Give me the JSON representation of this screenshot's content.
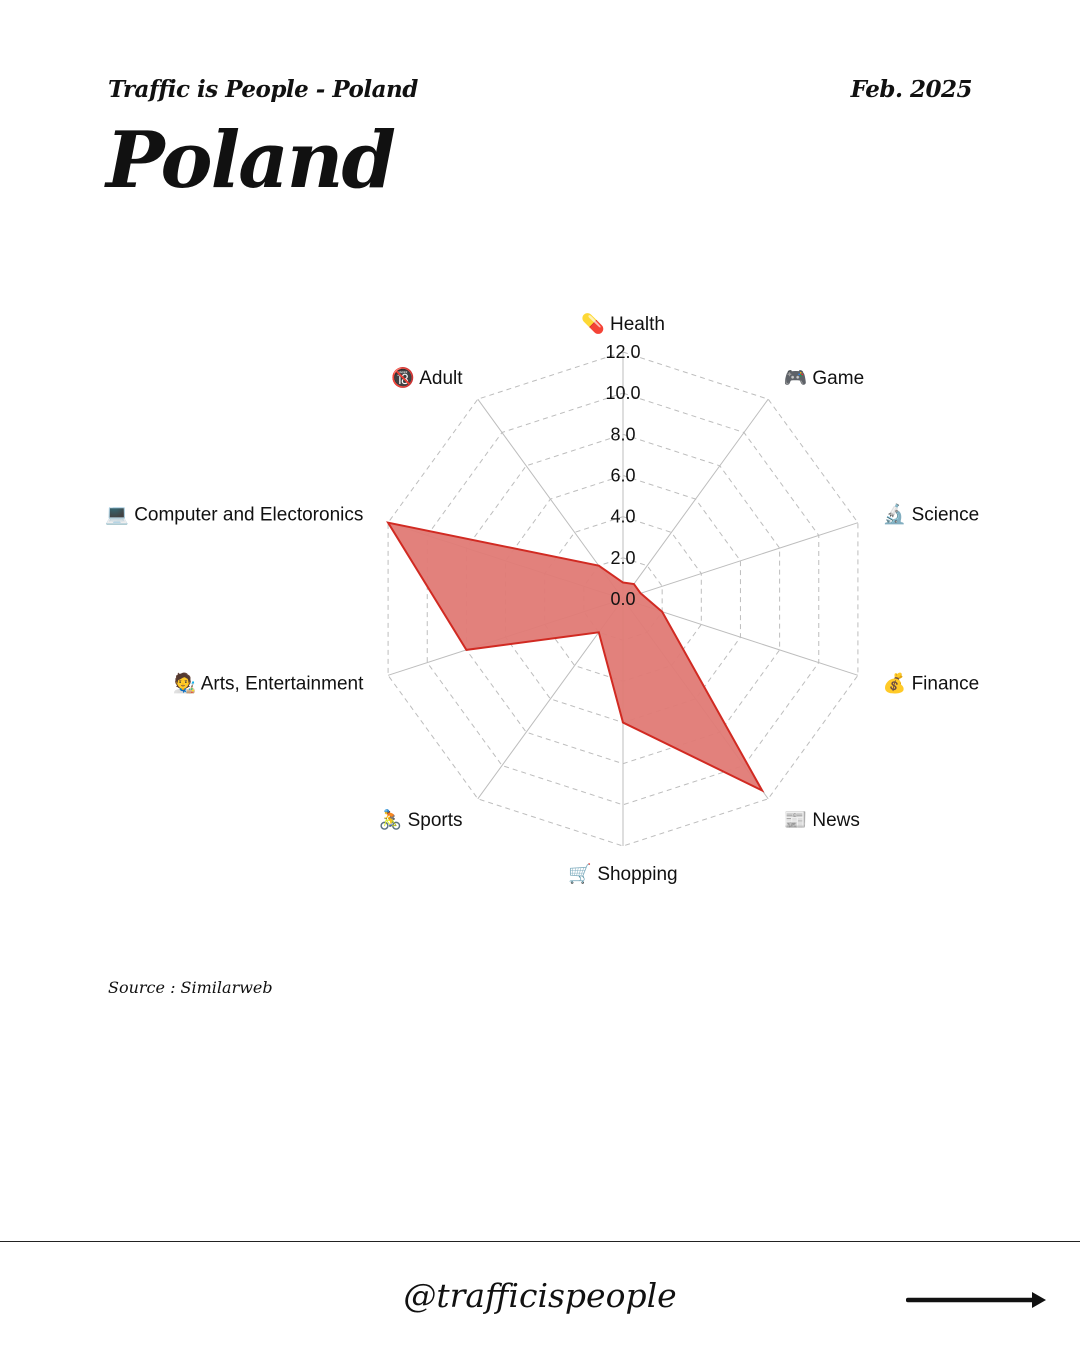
{
  "header": {
    "series_title": "Traffic is People - Poland",
    "date": "Feb. 2025",
    "title": "Poland"
  },
  "source": "Source : Similarweb",
  "footer": {
    "handle": "@trafficispeople",
    "next_icon": "right-arrow-icon"
  },
  "colors": {
    "fill": "#e07a75",
    "stroke": "#d12a22",
    "grid": "#bdbdbd"
  },
  "chart_data": {
    "type": "radar",
    "title": "",
    "rlim": [
      0,
      12
    ],
    "ticks": [
      "0.0",
      "2.0",
      "4.0",
      "6.0",
      "8.0",
      "10.0",
      "12.0"
    ],
    "grid": true,
    "categories": [
      {
        "label": "Health",
        "icon": "pill-icon",
        "glyph": "💊"
      },
      {
        "label": "Game",
        "icon": "gamepad-icon",
        "glyph": "🎮"
      },
      {
        "label": "Science",
        "icon": "microscope-icon",
        "glyph": "🔬"
      },
      {
        "label": "Finance",
        "icon": "money-bag-icon",
        "glyph": "💰"
      },
      {
        "label": "News",
        "icon": "newspaper-icon",
        "glyph": "📰"
      },
      {
        "label": "Shopping",
        "icon": "cart-icon",
        "glyph": "🛒"
      },
      {
        "label": "Sports",
        "icon": "cyclist-icon",
        "glyph": "🚴"
      },
      {
        "label": "Arts, Entertainment",
        "icon": "artist-icon",
        "glyph": "🧑‍🎨"
      },
      {
        "label": "Computer and Electoronics",
        "icon": "laptop-icon",
        "glyph": "💻"
      },
      {
        "label": "Adult",
        "icon": "no-under-18-icon",
        "glyph": "🔞"
      }
    ],
    "series": [
      {
        "values": [
          0.8,
          0.9,
          0.9,
          2.0,
          11.5,
          6.0,
          2.0,
          8.0,
          12.0,
          2.0
        ]
      }
    ]
  }
}
